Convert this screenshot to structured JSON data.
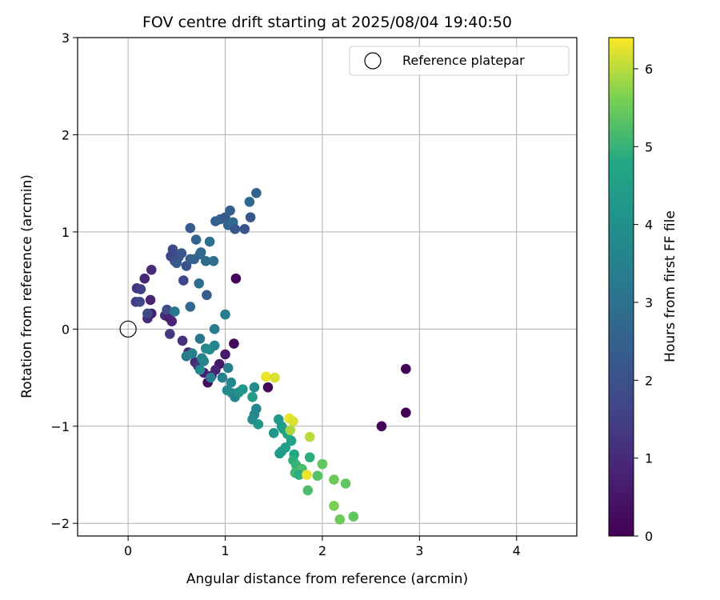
{
  "chart_data": {
    "type": "scatter",
    "title": "FOV centre drift starting at 2025/08/04 19:40:50",
    "xlabel": "Angular distance from reference (arcmin)",
    "ylabel": "Rotation from reference (arcmin)",
    "xlim": [
      -0.52,
      4.62
    ],
    "ylim": [
      -2.13,
      3.0
    ],
    "x_ticks": [
      0,
      1,
      2,
      3,
      4
    ],
    "y_ticks": [
      -2,
      -1,
      0,
      1,
      2,
      3
    ],
    "grid": true,
    "legend": {
      "position": "top-right",
      "entries": [
        "Reference platepar"
      ]
    },
    "reference_point": {
      "x": 0,
      "y": 0,
      "label": "Reference platepar"
    },
    "colorbar": {
      "label": "Hours from first FF file",
      "range": [
        0,
        6.4
      ],
      "ticks": [
        0,
        1,
        2,
        3,
        4,
        5,
        6
      ],
      "colormap": "viridis"
    },
    "points": [
      {
        "x": 1.11,
        "y": 0.52,
        "c": 0.05
      },
      {
        "x": 2.86,
        "y": -0.41,
        "c": 0.05
      },
      {
        "x": 2.86,
        "y": -0.86,
        "c": 0.05
      },
      {
        "x": 2.61,
        "y": -1.0,
        "c": 0.05
      },
      {
        "x": 1.09,
        "y": -0.15,
        "c": 0.15
      },
      {
        "x": 1.44,
        "y": -0.6,
        "c": 0.2
      },
      {
        "x": 0.82,
        "y": -0.55,
        "c": 0.3
      },
      {
        "x": 0.86,
        "y": -0.48,
        "c": 0.4
      },
      {
        "x": 0.94,
        "y": -0.36,
        "c": 0.5
      },
      {
        "x": 1.0,
        "y": -0.26,
        "c": 0.6
      },
      {
        "x": 0.78,
        "y": -0.45,
        "c": 0.7
      },
      {
        "x": 0.9,
        "y": -0.42,
        "c": 0.8
      },
      {
        "x": 0.62,
        "y": -0.24,
        "c": 0.9
      },
      {
        "x": 0.69,
        "y": -0.34,
        "c": 1.0
      },
      {
        "x": 0.56,
        "y": -0.12,
        "c": 1.1
      },
      {
        "x": 0.72,
        "y": -0.38,
        "c": 1.2
      },
      {
        "x": 0.43,
        "y": -0.05,
        "c": 1.3
      },
      {
        "x": 0.45,
        "y": 0.08,
        "c": 0.9
      },
      {
        "x": 0.38,
        "y": 0.14,
        "c": 1.1
      },
      {
        "x": 0.42,
        "y": 0.12,
        "c": 0.8
      },
      {
        "x": 0.2,
        "y": 0.11,
        "c": 1.0
      },
      {
        "x": 0.24,
        "y": 0.16,
        "c": 0.7
      },
      {
        "x": 0.23,
        "y": 0.3,
        "c": 0.8
      },
      {
        "x": 0.17,
        "y": 0.52,
        "c": 0.9
      },
      {
        "x": 0.24,
        "y": 0.61,
        "c": 1.0
      },
      {
        "x": 0.09,
        "y": 0.42,
        "c": 1.2
      },
      {
        "x": 0.13,
        "y": 0.41,
        "c": 1.5
      },
      {
        "x": 0.08,
        "y": 0.28,
        "c": 1.4
      },
      {
        "x": 0.12,
        "y": 0.28,
        "c": 1.7
      },
      {
        "x": 0.2,
        "y": 0.16,
        "c": 1.8
      },
      {
        "x": 0.4,
        "y": 0.2,
        "c": 1.9
      },
      {
        "x": 0.57,
        "y": 0.5,
        "c": 1.7
      },
      {
        "x": 0.44,
        "y": 0.75,
        "c": 1.6
      },
      {
        "x": 0.48,
        "y": 0.7,
        "c": 1.9
      },
      {
        "x": 0.52,
        "y": 0.74,
        "c": 2.0
      },
      {
        "x": 0.46,
        "y": 0.82,
        "c": 1.8
      },
      {
        "x": 0.6,
        "y": 0.65,
        "c": 2.0
      },
      {
        "x": 0.55,
        "y": 0.78,
        "c": 2.2
      },
      {
        "x": 0.64,
        "y": 0.72,
        "c": 2.4
      },
      {
        "x": 0.68,
        "y": 0.72,
        "c": 2.5
      },
      {
        "x": 0.64,
        "y": 1.04,
        "c": 2.3
      },
      {
        "x": 0.7,
        "y": 0.92,
        "c": 2.6
      },
      {
        "x": 0.74,
        "y": 0.77,
        "c": 2.5
      },
      {
        "x": 0.75,
        "y": 0.79,
        "c": 2.7
      },
      {
        "x": 0.8,
        "y": 0.7,
        "c": 2.8
      },
      {
        "x": 0.84,
        "y": 0.9,
        "c": 2.9
      },
      {
        "x": 0.88,
        "y": 0.7,
        "c": 3.0
      },
      {
        "x": 0.73,
        "y": 0.47,
        "c": 2.9
      },
      {
        "x": 0.81,
        "y": 0.35,
        "c": 2.4
      },
      {
        "x": 0.64,
        "y": 0.23,
        "c": 2.7
      },
      {
        "x": 0.5,
        "y": 0.68,
        "c": 2.3
      },
      {
        "x": 0.9,
        "y": 1.11,
        "c": 2.5
      },
      {
        "x": 0.95,
        "y": 1.13,
        "c": 2.6
      },
      {
        "x": 1.0,
        "y": 1.15,
        "c": 2.3
      },
      {
        "x": 1.05,
        "y": 1.22,
        "c": 2.4
      },
      {
        "x": 1.03,
        "y": 1.07,
        "c": 2.6
      },
      {
        "x": 1.08,
        "y": 1.1,
        "c": 2.8
      },
      {
        "x": 1.1,
        "y": 1.03,
        "c": 2.2
      },
      {
        "x": 1.2,
        "y": 1.03,
        "c": 2.1
      },
      {
        "x": 1.26,
        "y": 1.15,
        "c": 2.2
      },
      {
        "x": 1.25,
        "y": 1.31,
        "c": 2.7
      },
      {
        "x": 1.32,
        "y": 1.4,
        "c": 2.5
      },
      {
        "x": 0.48,
        "y": 0.18,
        "c": 3.2
      },
      {
        "x": 0.6,
        "y": -0.28,
        "c": 3.3
      },
      {
        "x": 0.66,
        "y": -0.25,
        "c": 3.5
      },
      {
        "x": 0.74,
        "y": -0.1,
        "c": 3.1
      },
      {
        "x": 0.76,
        "y": -0.3,
        "c": 3.5
      },
      {
        "x": 0.8,
        "y": -0.2,
        "c": 3.7
      },
      {
        "x": 0.84,
        "y": -0.21,
        "c": 3.9
      },
      {
        "x": 0.89,
        "y": 0.0,
        "c": 3.3
      },
      {
        "x": 0.89,
        "y": -0.17,
        "c": 3.6
      },
      {
        "x": 0.74,
        "y": -0.42,
        "c": 3.8
      },
      {
        "x": 0.85,
        "y": -0.5,
        "c": 3.4
      },
      {
        "x": 0.78,
        "y": -0.33,
        "c": 3.6
      },
      {
        "x": 1.0,
        "y": 0.15,
        "c": 3.4
      },
      {
        "x": 1.03,
        "y": -0.4,
        "c": 3.3
      },
      {
        "x": 0.97,
        "y": -0.5,
        "c": 3.5
      },
      {
        "x": 1.06,
        "y": -0.55,
        "c": 3.7
      },
      {
        "x": 1.02,
        "y": -0.63,
        "c": 3.8
      },
      {
        "x": 1.07,
        "y": -0.66,
        "c": 3.9
      },
      {
        "x": 1.1,
        "y": -0.7,
        "c": 3.6
      },
      {
        "x": 1.14,
        "y": -0.65,
        "c": 4.1
      },
      {
        "x": 1.18,
        "y": -0.62,
        "c": 4.2
      },
      {
        "x": 1.3,
        "y": -0.6,
        "c": 3.9
      },
      {
        "x": 1.28,
        "y": -0.7,
        "c": 4.4
      },
      {
        "x": 1.3,
        "y": -0.88,
        "c": 3.6
      },
      {
        "x": 1.28,
        "y": -0.93,
        "c": 3.9
      },
      {
        "x": 1.32,
        "y": -0.82,
        "c": 3.7
      },
      {
        "x": 1.34,
        "y": -0.98,
        "c": 4.2
      },
      {
        "x": 1.5,
        "y": -1.07,
        "c": 4.2
      },
      {
        "x": 1.55,
        "y": -0.93,
        "c": 4.3
      },
      {
        "x": 1.58,
        "y": -1.0,
        "c": 4.4
      },
      {
        "x": 1.6,
        "y": -1.03,
        "c": 4.5
      },
      {
        "x": 1.64,
        "y": -1.08,
        "c": 4.6
      },
      {
        "x": 1.56,
        "y": -1.28,
        "c": 4.3
      },
      {
        "x": 1.58,
        "y": -1.26,
        "c": 4.4
      },
      {
        "x": 1.62,
        "y": -1.22,
        "c": 4.5
      },
      {
        "x": 1.68,
        "y": -1.15,
        "c": 4.6
      },
      {
        "x": 1.71,
        "y": -1.29,
        "c": 4.8
      },
      {
        "x": 1.7,
        "y": -1.35,
        "c": 4.9
      },
      {
        "x": 1.73,
        "y": -1.4,
        "c": 5.0
      },
      {
        "x": 1.72,
        "y": -1.48,
        "c": 5.1
      },
      {
        "x": 1.79,
        "y": -1.44,
        "c": 5.2
      },
      {
        "x": 1.76,
        "y": -1.5,
        "c": 4.9
      },
      {
        "x": 1.87,
        "y": -1.32,
        "c": 4.9
      },
      {
        "x": 1.85,
        "y": -1.66,
        "c": 5.2
      },
      {
        "x": 1.95,
        "y": -1.51,
        "c": 5.3
      },
      {
        "x": 2.0,
        "y": -1.39,
        "c": 5.4
      },
      {
        "x": 2.12,
        "y": -1.55,
        "c": 5.5
      },
      {
        "x": 2.24,
        "y": -1.59,
        "c": 5.4
      },
      {
        "x": 2.12,
        "y": -1.82,
        "c": 5.6
      },
      {
        "x": 2.18,
        "y": -1.96,
        "c": 5.5
      },
      {
        "x": 2.32,
        "y": -1.93,
        "c": 5.4
      },
      {
        "x": 1.42,
        "y": -0.49,
        "c": 6.3
      },
      {
        "x": 1.51,
        "y": -0.5,
        "c": 6.2
      },
      {
        "x": 1.66,
        "y": -0.92,
        "c": 6.3
      },
      {
        "x": 1.7,
        "y": -0.95,
        "c": 6.2
      },
      {
        "x": 1.87,
        "y": -1.11,
        "c": 6.0
      },
      {
        "x": 1.84,
        "y": -1.5,
        "c": 6.3
      },
      {
        "x": 1.67,
        "y": -1.04,
        "c": 5.9
      }
    ]
  }
}
